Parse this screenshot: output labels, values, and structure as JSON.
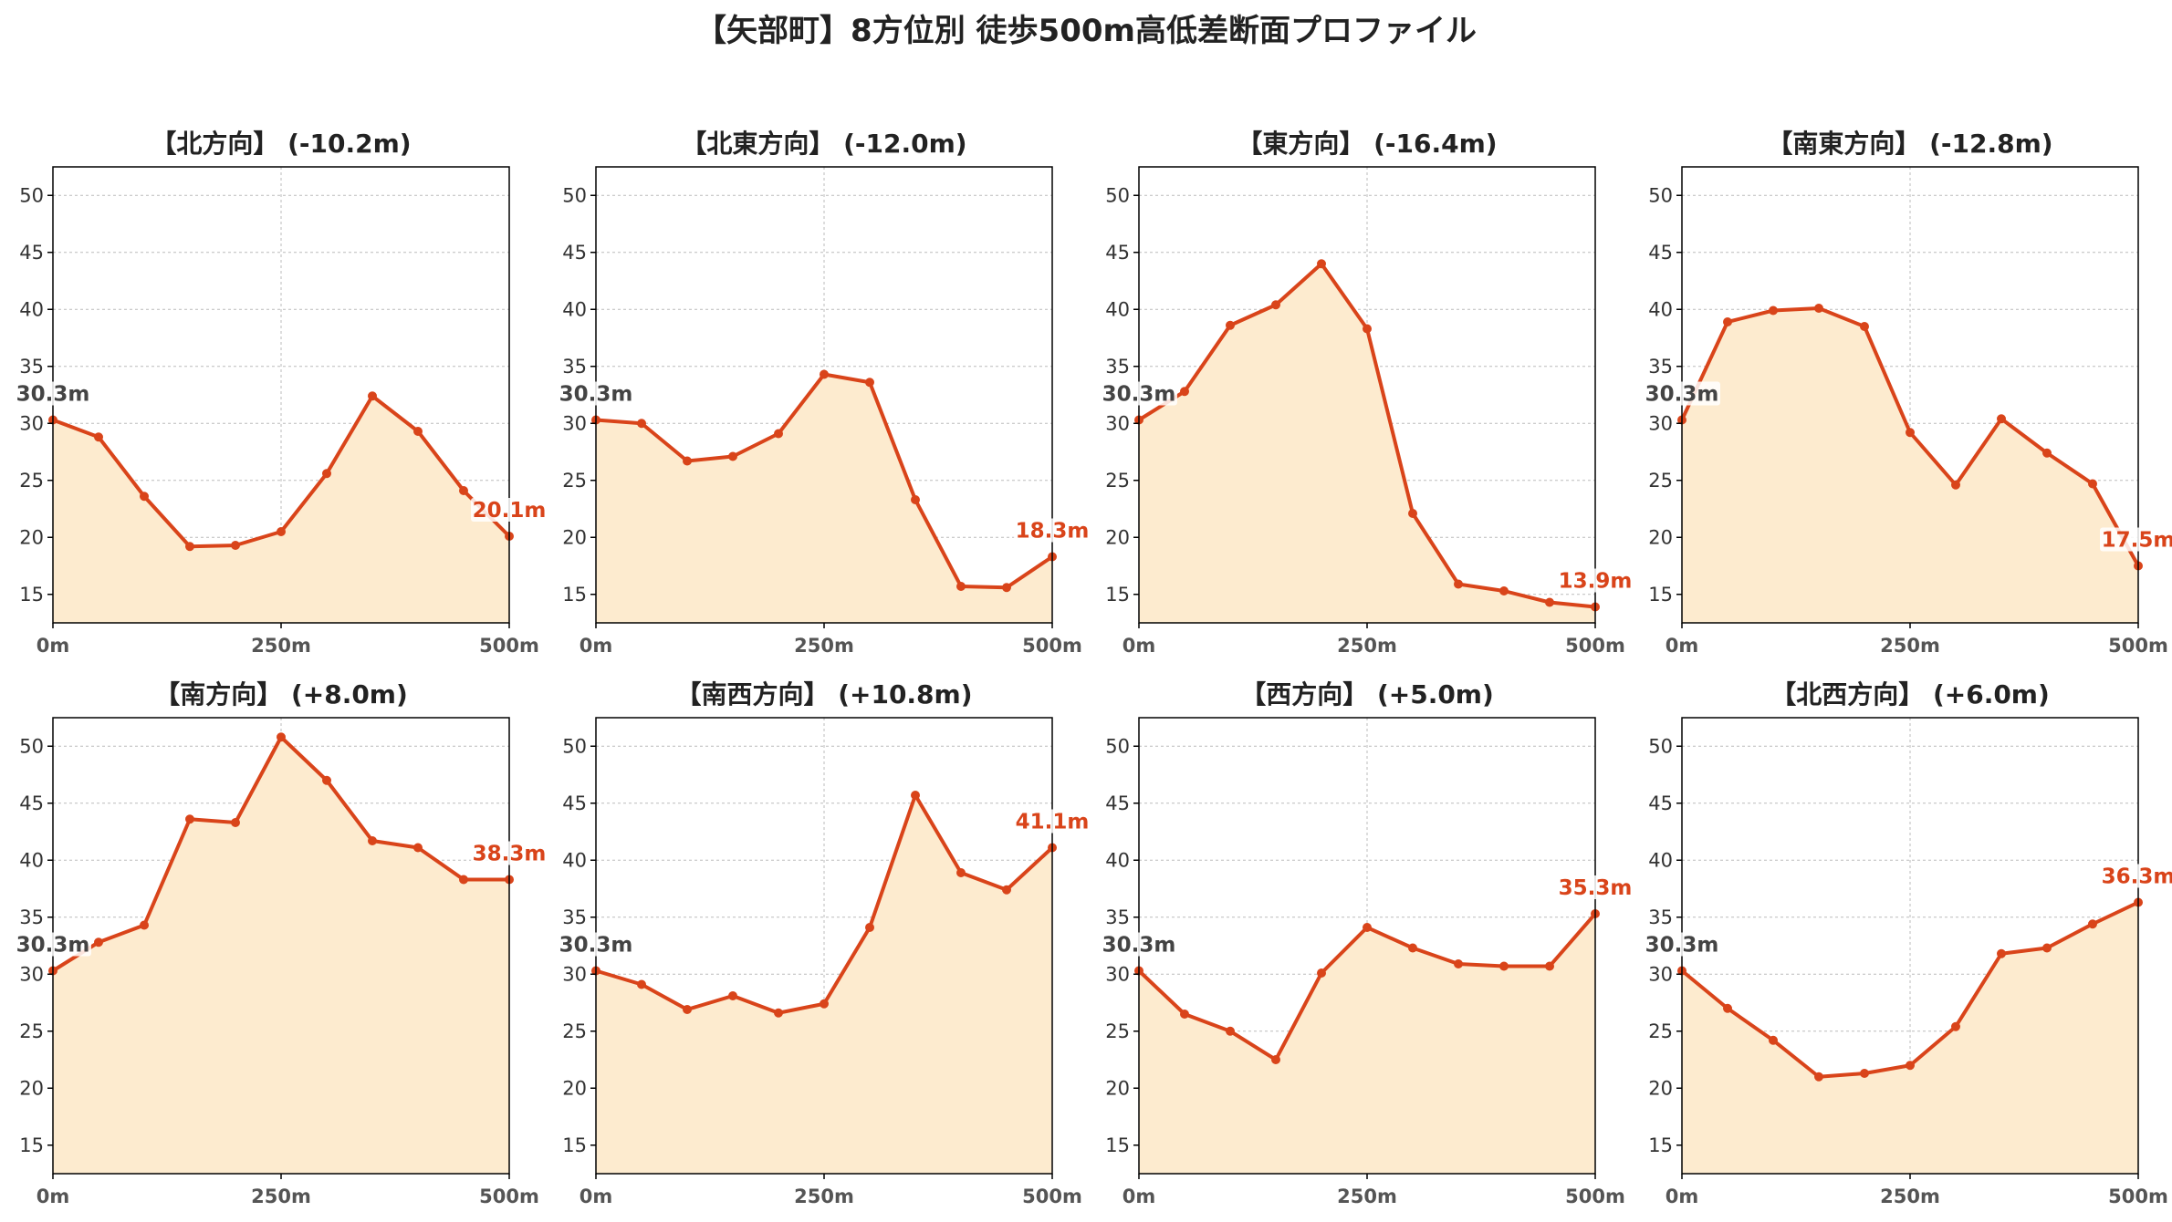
{
  "page_title": "【矢部町】8方位別 徒歩500m高低差断面プロファイル",
  "colors": {
    "line": "#d9441a",
    "fill": "#fdebcf",
    "grid": "#bbbbbb",
    "axis": "#000000",
    "start_label": "#444444",
    "end_label": "#d9441a"
  },
  "chart_data": [
    {
      "type": "line",
      "title": "【北方向】 (-10.2m)",
      "x": [
        0,
        50,
        100,
        150,
        200,
        250,
        300,
        350,
        400,
        450,
        500
      ],
      "values": [
        30.3,
        28.8,
        23.6,
        19.2,
        19.3,
        20.5,
        25.6,
        32.4,
        29.3,
        24.1,
        20.1
      ],
      "start_label": "30.3m",
      "end_label": "20.1m",
      "xticks": [
        "0m",
        "250m",
        "500m"
      ],
      "yticks": [
        15,
        20,
        25,
        30,
        35,
        40,
        45,
        50
      ],
      "xlim": [
        0,
        500
      ],
      "ylim": [
        12.5,
        52.5
      ],
      "grid": true
    },
    {
      "type": "line",
      "title": "【北東方向】 (-12.0m)",
      "x": [
        0,
        50,
        100,
        150,
        200,
        250,
        300,
        350,
        400,
        450,
        500
      ],
      "values": [
        30.3,
        30.0,
        26.7,
        27.1,
        29.1,
        34.3,
        33.6,
        23.3,
        15.7,
        15.6,
        18.3
      ],
      "start_label": "30.3m",
      "end_label": "18.3m",
      "xticks": [
        "0m",
        "250m",
        "500m"
      ],
      "yticks": [
        15,
        20,
        25,
        30,
        35,
        40,
        45,
        50
      ],
      "xlim": [
        0,
        500
      ],
      "ylim": [
        12.5,
        52.5
      ],
      "grid": true
    },
    {
      "type": "line",
      "title": "【東方向】 (-16.4m)",
      "x": [
        0,
        50,
        100,
        150,
        200,
        250,
        300,
        350,
        400,
        450,
        500
      ],
      "values": [
        30.3,
        32.8,
        38.6,
        40.4,
        44.0,
        38.3,
        22.1,
        15.9,
        15.3,
        14.3,
        13.9
      ],
      "start_label": "30.3m",
      "end_label": "13.9m",
      "xticks": [
        "0m",
        "250m",
        "500m"
      ],
      "yticks": [
        15,
        20,
        25,
        30,
        35,
        40,
        45,
        50
      ],
      "xlim": [
        0,
        500
      ],
      "ylim": [
        12.5,
        52.5
      ],
      "grid": true
    },
    {
      "type": "line",
      "title": "【南東方向】 (-12.8m)",
      "x": [
        0,
        50,
        100,
        150,
        200,
        250,
        300,
        350,
        400,
        450,
        500
      ],
      "values": [
        30.3,
        38.9,
        39.9,
        40.1,
        38.5,
        29.2,
        24.6,
        30.4,
        27.4,
        24.7,
        17.5
      ],
      "start_label": "30.3m",
      "end_label": "17.5m",
      "xticks": [
        "0m",
        "250m",
        "500m"
      ],
      "yticks": [
        15,
        20,
        25,
        30,
        35,
        40,
        45,
        50
      ],
      "xlim": [
        0,
        500
      ],
      "ylim": [
        12.5,
        52.5
      ],
      "grid": true
    },
    {
      "type": "line",
      "title": "【南方向】 (+8.0m)",
      "x": [
        0,
        50,
        100,
        150,
        200,
        250,
        300,
        350,
        400,
        450,
        500
      ],
      "values": [
        30.3,
        32.8,
        34.3,
        43.6,
        43.3,
        50.8,
        47.0,
        41.7,
        41.1,
        38.3,
        38.3
      ],
      "start_label": "30.3m",
      "end_label": "38.3m",
      "xticks": [
        "0m",
        "250m",
        "500m"
      ],
      "yticks": [
        15,
        20,
        25,
        30,
        35,
        40,
        45,
        50
      ],
      "xlim": [
        0,
        500
      ],
      "ylim": [
        12.5,
        52.5
      ],
      "grid": true
    },
    {
      "type": "line",
      "title": "【南西方向】 (+10.8m)",
      "x": [
        0,
        50,
        100,
        150,
        200,
        250,
        300,
        350,
        400,
        450,
        500
      ],
      "values": [
        30.3,
        29.1,
        26.9,
        28.1,
        26.6,
        27.4,
        34.1,
        45.7,
        38.9,
        37.4,
        41.1
      ],
      "start_label": "30.3m",
      "end_label": "41.1m",
      "xticks": [
        "0m",
        "250m",
        "500m"
      ],
      "yticks": [
        15,
        20,
        25,
        30,
        35,
        40,
        45,
        50
      ],
      "xlim": [
        0,
        500
      ],
      "ylim": [
        12.5,
        52.5
      ],
      "grid": true
    },
    {
      "type": "line",
      "title": "【西方向】 (+5.0m)",
      "x": [
        0,
        50,
        100,
        150,
        200,
        250,
        300,
        350,
        400,
        450,
        500
      ],
      "values": [
        30.3,
        26.5,
        25.0,
        22.5,
        30.1,
        34.1,
        32.3,
        30.9,
        30.7,
        30.7,
        35.3
      ],
      "start_label": "30.3m",
      "end_label": "35.3m",
      "xticks": [
        "0m",
        "250m",
        "500m"
      ],
      "yticks": [
        15,
        20,
        25,
        30,
        35,
        40,
        45,
        50
      ],
      "xlim": [
        0,
        500
      ],
      "ylim": [
        12.5,
        52.5
      ],
      "grid": true
    },
    {
      "type": "line",
      "title": "【北西方向】 (+6.0m)",
      "x": [
        0,
        50,
        100,
        150,
        200,
        250,
        300,
        350,
        400,
        450,
        500
      ],
      "values": [
        30.3,
        27.0,
        24.2,
        21.0,
        21.3,
        22.0,
        25.4,
        31.8,
        32.3,
        34.4,
        36.3
      ],
      "start_label": "30.3m",
      "end_label": "36.3m",
      "xticks": [
        "0m",
        "250m",
        "500m"
      ],
      "yticks": [
        15,
        20,
        25,
        30,
        35,
        40,
        45,
        50
      ],
      "xlim": [
        0,
        500
      ],
      "ylim": [
        12.5,
        52.5
      ],
      "grid": true
    }
  ]
}
